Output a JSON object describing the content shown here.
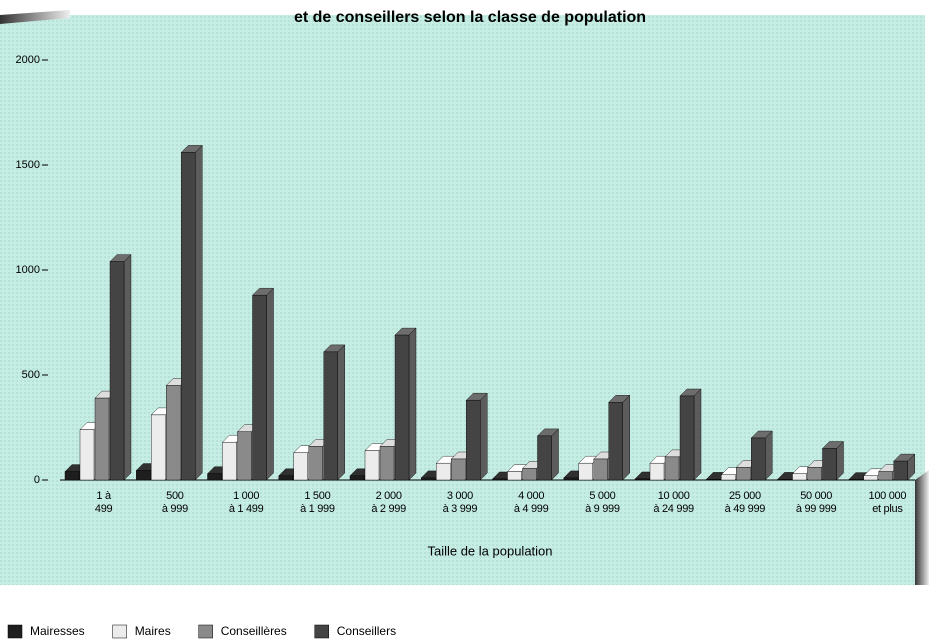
{
  "chart_data": {
    "type": "bar3d",
    "title": "et de conseillers selon la classe de population",
    "x_label": "Taille de la population",
    "categories": [
      "1 à\n499",
      "500\nà 999",
      "1 000\nà 1 499",
      "1 500\nà 1 999",
      "2 000\nà 2 999",
      "3 000\nà 3 999",
      "4 000\nà 4 999",
      "5 000\nà 9 999",
      "10 000\nà 24 999",
      "25 000\nà 49 999",
      "50 000\nà 99 999",
      "100 000\net plus"
    ],
    "series": [
      {
        "name": "Mairesses",
        "color": "#1e1e1e",
        "values": [
          40,
          45,
          30,
          20,
          20,
          10,
          5,
          10,
          5,
          3,
          3,
          2
        ]
      },
      {
        "name": "Maires",
        "color": "#ececec",
        "values": [
          240,
          310,
          180,
          130,
          140,
          80,
          40,
          80,
          80,
          25,
          30,
          20
        ]
      },
      {
        "name": "Conseillères",
        "color": "#8a8a8a",
        "values": [
          390,
          450,
          230,
          160,
          160,
          100,
          55,
          100,
          110,
          60,
          60,
          40
        ]
      },
      {
        "name": "Conseillers",
        "color": "#444444",
        "values": [
          1040,
          1560,
          880,
          610,
          690,
          380,
          210,
          370,
          400,
          200,
          150,
          90
        ]
      }
    ],
    "ylim": [
      0,
      2200
    ],
    "yticks": [
      0,
      500,
      1000,
      1500,
      2000
    ]
  }
}
